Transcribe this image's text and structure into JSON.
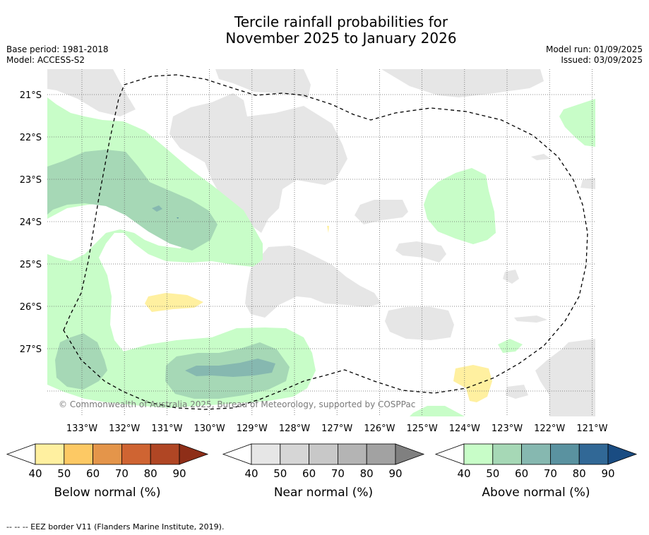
{
  "title_line1": "Tercile rainfall probabilities for",
  "title_line2": "November 2025 to January 2026",
  "meta": {
    "base_period": "Base period: 1981-2018",
    "model": "Model: ACCESS-S2",
    "model_run": "Model run: 01/09/2025",
    "issued": "Issued: 03/09/2025"
  },
  "map": {
    "lat_labels": [
      "21°S",
      "22°S",
      "23°S",
      "24°S",
      "25°S",
      "26°S",
      "27°S"
    ],
    "lon_labels": [
      "133°W",
      "132°W",
      "131°W",
      "130°W",
      "129°W",
      "128°W",
      "127°W",
      "126°W",
      "125°W",
      "124°W",
      "123°W",
      "122°W",
      "121°W"
    ],
    "copyright": "© Commonwealth of Australia 2025, Bureau of Meteorology, supported by COSPPac"
  },
  "colorbars": [
    {
      "name": "below",
      "label": "Below normal (%)",
      "ticks": [
        "40",
        "50",
        "60",
        "70",
        "80",
        "90"
      ],
      "colors": [
        "#ffffff",
        "#fff0a0",
        "#fdc964",
        "#e4954a",
        "#cf6432",
        "#b04624",
        "#8e2e18"
      ]
    },
    {
      "name": "near",
      "label": "Near normal (%)",
      "ticks": [
        "40",
        "50",
        "60",
        "70",
        "80",
        "90"
      ],
      "colors": [
        "#ffffff",
        "#e6e6e6",
        "#d6d6d6",
        "#c8c8c8",
        "#b4b4b4",
        "#a2a2a2",
        "#808080"
      ]
    },
    {
      "name": "above",
      "label": "Above normal (%)",
      "ticks": [
        "40",
        "50",
        "60",
        "70",
        "80",
        "90"
      ],
      "colors": [
        "#ffffff",
        "#c8fdc8",
        "#a6d8b6",
        "#86b8b0",
        "#5a92a0",
        "#316896",
        "#1a4c82"
      ]
    }
  ],
  "footnote": "-- -- -- EEZ border V11 (Flanders Marine Institute, 2019)."
}
